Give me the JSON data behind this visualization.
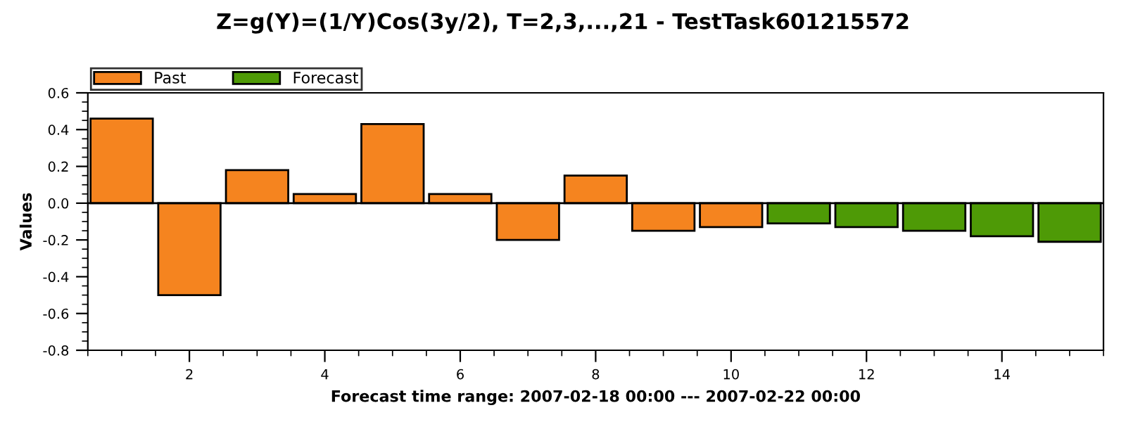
{
  "chart_data": {
    "type": "bar",
    "title": "Z=g(Y)=(1/Y)Cos(3y/2), T=2,3,...,21 - TestTask601215572",
    "xlabel": "Forecast time range: 2007-02-18 00:00 --- 2007-02-22 00:00",
    "ylabel": "Values",
    "series": [
      {
        "name": "Past",
        "color": "#f5841f",
        "x": [
          1,
          2,
          3,
          4,
          5,
          6,
          7,
          8,
          9,
          10
        ],
        "values": [
          0.46,
          -0.5,
          0.18,
          0.05,
          0.43,
          0.05,
          -0.2,
          0.15,
          -0.15,
          -0.13
        ]
      },
      {
        "name": "Forecast",
        "color": "#4e9a06",
        "x": [
          11,
          12,
          13,
          14,
          15
        ],
        "values": [
          -0.11,
          -0.13,
          -0.15,
          -0.18,
          -0.21
        ]
      }
    ],
    "xlim": [
      0.5,
      15.5
    ],
    "xticks": [
      2,
      4,
      6,
      8,
      10,
      12,
      14
    ],
    "ylim": [
      -0.8,
      0.6
    ],
    "yticks": [
      {
        "value": -0.8,
        "label": "-0.8"
      },
      {
        "value": -0.6,
        "label": "-0.6"
      },
      {
        "value": -0.4,
        "label": "-0.4"
      },
      {
        "value": -0.2,
        "label": "-0.2"
      },
      {
        "value": 0.0,
        "label": "0.0"
      },
      {
        "value": 0.2,
        "label": "0.2"
      },
      {
        "value": 0.4,
        "label": "0.4"
      },
      {
        "value": 0.6,
        "label": "0.6"
      }
    ],
    "ref_lines": [
      {
        "axis": "y",
        "value": 0,
        "color": "#000000"
      }
    ],
    "grid": false,
    "legend": "top left"
  }
}
